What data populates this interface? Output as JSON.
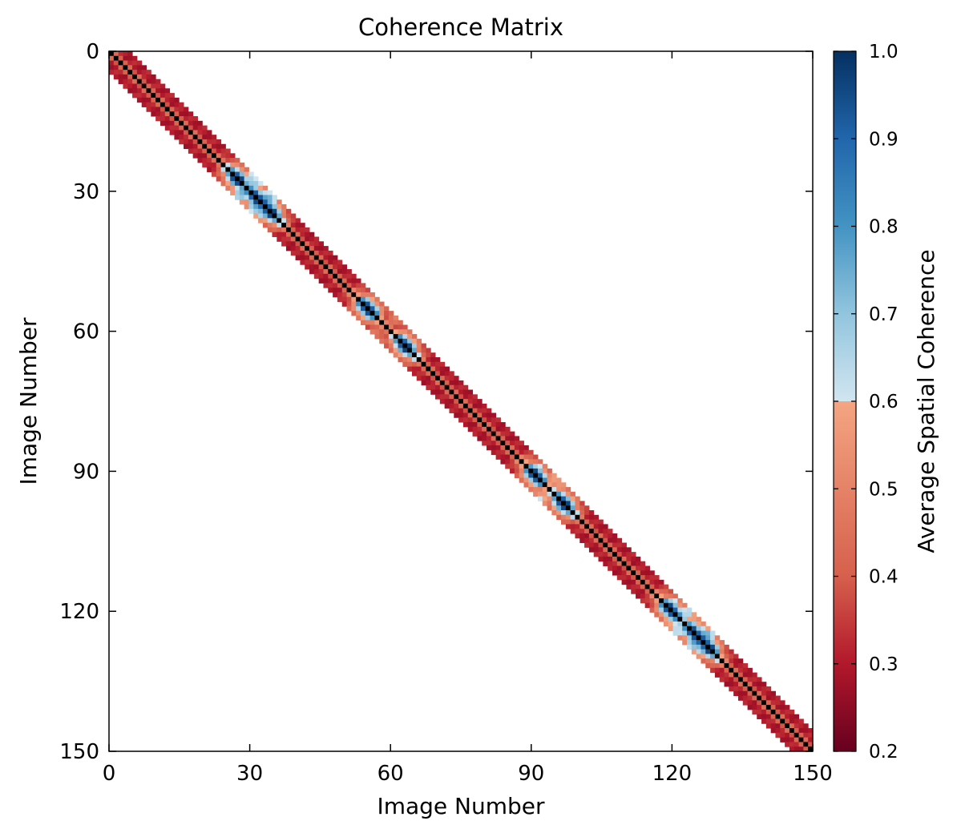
{
  "chart_data": {
    "type": "heatmap",
    "title": "Coherence Matrix",
    "xlabel": "Image Number",
    "ylabel": "Image Number",
    "n_images": 151,
    "xlim": [
      0,
      150
    ],
    "ylim": [
      150,
      0
    ],
    "x_ticks": [
      0,
      30,
      60,
      90,
      120,
      150
    ],
    "y_ticks": [
      0,
      30,
      60,
      90,
      120,
      150
    ],
    "band_halfwidth": 4,
    "diagonal_value": 1.0,
    "background": "#ffffff",
    "high_coherence_centers": [
      27,
      31,
      34,
      55,
      63,
      91,
      97,
      120,
      125,
      128
    ],
    "colorbar": {
      "label": "Average Spatial Coherence",
      "range": [
        0.2,
        1.0
      ],
      "ticks": [
        0.2,
        0.3,
        0.4,
        0.5,
        0.6,
        0.7,
        0.8,
        0.9,
        1.0
      ],
      "tick_labels": [
        "0.2",
        "0.3",
        "0.4",
        "0.5",
        "0.6",
        "0.7",
        "0.8",
        "0.9",
        "1.0"
      ],
      "colormap": "RdBu"
    }
  }
}
